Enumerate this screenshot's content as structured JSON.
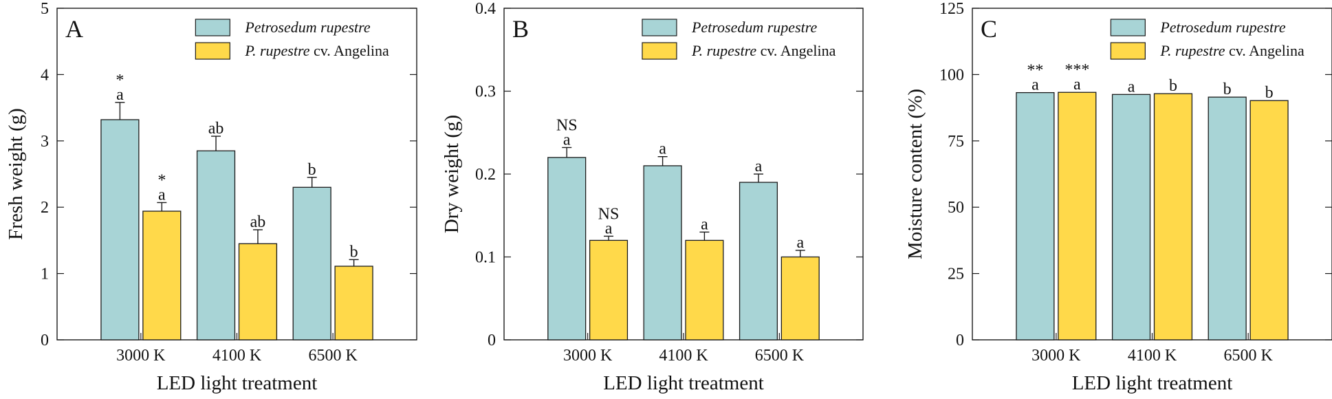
{
  "colors": {
    "series_1": "#a8d4d6",
    "series_2": "#ffd94a",
    "stroke": "#1a1a1a"
  },
  "legend": [
    {
      "name_italic": "Petrosedum rupestre",
      "name_rest": ""
    },
    {
      "name_italic": "P. rupestre",
      "name_rest": " cv. Angelina"
    }
  ],
  "chart_data": [
    {
      "type": "bar",
      "panel_letter": "A",
      "title": "",
      "xlabel": "LED light treatment",
      "ylabel": "Fresh weight (g)",
      "categories": [
        "3000 K",
        "4100 K",
        "6500 K"
      ],
      "ylim": [
        0,
        5
      ],
      "yticks": [
        0,
        1,
        2,
        3,
        4,
        5
      ],
      "ytick_labels": [
        "0",
        "1",
        "2",
        "3",
        "4",
        "5"
      ],
      "legend_position": "top-right",
      "series": [
        {
          "name": "Petrosedum rupestre",
          "values": [
            3.32,
            2.85,
            2.3
          ],
          "errors": [
            0.26,
            0.22,
            0.15
          ],
          "labels": [
            "a",
            "ab",
            "b"
          ],
          "significance": [
            "*",
            "",
            ""
          ]
        },
        {
          "name": "P. rupestre cv. Angelina",
          "values": [
            1.94,
            1.45,
            1.11
          ],
          "errors": [
            0.13,
            0.21,
            0.1
          ],
          "labels": [
            "a",
            "ab",
            "b"
          ],
          "significance": [
            "*",
            "",
            ""
          ]
        }
      ]
    },
    {
      "type": "bar",
      "panel_letter": "B",
      "title": "",
      "xlabel": "LED light treatment",
      "ylabel": "Dry weight (g)",
      "categories": [
        "3000 K",
        "4100 K",
        "6500 K"
      ],
      "ylim": [
        0,
        0.4
      ],
      "yticks": [
        0,
        0.1,
        0.2,
        0.3,
        0.4
      ],
      "ytick_labels": [
        "0",
        "0.1",
        "0.2",
        "0.3",
        "0.4"
      ],
      "legend_position": "top-right",
      "series": [
        {
          "name": "Petrosedum rupestre",
          "values": [
            0.22,
            0.21,
            0.19
          ],
          "errors": [
            0.012,
            0.011,
            0.01
          ],
          "labels": [
            "a",
            "a",
            "a"
          ],
          "significance": [
            "NS",
            "",
            ""
          ]
        },
        {
          "name": "P. rupestre cv. Angelina",
          "values": [
            0.12,
            0.12,
            0.1
          ],
          "errors": [
            0.005,
            0.01,
            0.008
          ],
          "labels": [
            "a",
            "a",
            "a"
          ],
          "significance": [
            "NS",
            "",
            ""
          ]
        }
      ]
    },
    {
      "type": "bar",
      "panel_letter": "C",
      "title": "",
      "xlabel": "LED light treatment",
      "ylabel": "Moisture content (%)",
      "categories": [
        "3000 K",
        "4100 K",
        "6500 K"
      ],
      "ylim": [
        0,
        125
      ],
      "yticks": [
        0,
        25,
        50,
        75,
        100,
        125
      ],
      "ytick_labels": [
        "0",
        "25",
        "50",
        "75",
        "100",
        "125"
      ],
      "legend_position": "top-right",
      "series": [
        {
          "name": "Petrosedum rupestre",
          "values": [
            93.2,
            92.5,
            91.5
          ],
          "errors": [
            0,
            0,
            0
          ],
          "labels": [
            "a",
            "a",
            "b"
          ],
          "significance": [
            "**",
            "",
            ""
          ]
        },
        {
          "name": "P. rupestre cv. Angelina",
          "values": [
            93.3,
            92.8,
            90.2
          ],
          "errors": [
            0,
            0,
            0
          ],
          "labels": [
            "a",
            "b",
            "b"
          ],
          "significance": [
            "***",
            "",
            ""
          ]
        }
      ]
    }
  ]
}
